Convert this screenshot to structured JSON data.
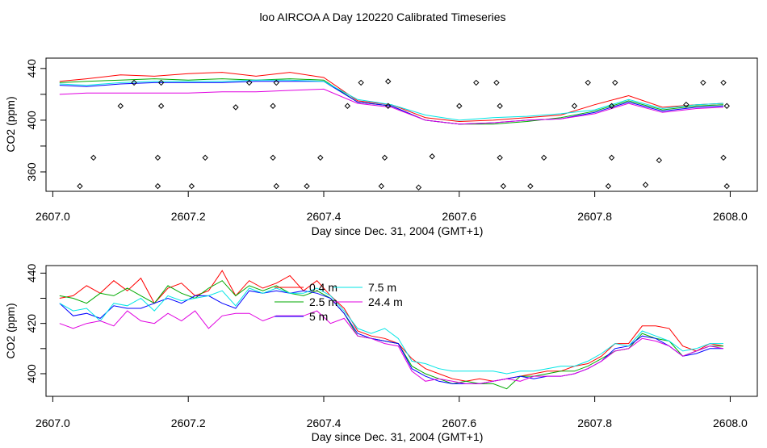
{
  "title": "loo AIRCOA A  Day 120220  Calibrated Timeseries",
  "colors": {
    "0.4 m": "#ff0000",
    "2.5 m": "#00aa00",
    "5 m": "#0000ff",
    "7.5 m": "#00e5e5",
    "24.4 m": "#e000e0",
    "points": "#000000"
  },
  "chart_data": [
    {
      "type": "line",
      "xlabel": "Day since Dec. 31, 2004 (GMT+1)",
      "ylabel": "CO2 (ppm)",
      "xlim": [
        2606.99,
        2608.04
      ],
      "ylim": [
        345,
        448
      ],
      "x_ticks": [
        "2607.0",
        "2607.2",
        "2607.4",
        "2607.6",
        "2607.8",
        "2608.0"
      ],
      "y_ticks": [
        "360",
        "400",
        "440"
      ],
      "y_tick_minor": [
        380,
        420
      ],
      "grid": false,
      "legend": "none",
      "x": [
        2607.01,
        2607.05,
        2607.1,
        2607.15,
        2607.2,
        2607.25,
        2607.3,
        2607.35,
        2607.4,
        2607.45,
        2607.5,
        2607.55,
        2607.6,
        2607.65,
        2607.7,
        2607.75,
        2607.8,
        2607.85,
        2607.9,
        2607.95,
        2607.99
      ],
      "series": [
        {
          "name": "0.4 m",
          "values": [
            430,
            432,
            435,
            434,
            436,
            437,
            434,
            437,
            433,
            415,
            412,
            402,
            399,
            400,
            402,
            404,
            412,
            419,
            410,
            412,
            413
          ]
        },
        {
          "name": "2.5 m",
          "values": [
            429,
            430,
            431,
            432,
            431,
            432,
            431,
            432,
            431,
            414,
            411,
            400,
            397,
            397,
            399,
            402,
            407,
            415,
            408,
            411,
            412
          ]
        },
        {
          "name": "5 m",
          "values": [
            427,
            426,
            428,
            429,
            429,
            429,
            430,
            430,
            430,
            414,
            411,
            400,
            397,
            398,
            400,
            401,
            406,
            414,
            407,
            410,
            411
          ]
        },
        {
          "name": "7.5 m",
          "values": [
            428,
            427,
            429,
            430,
            430,
            430,
            431,
            431,
            430,
            416,
            412,
            404,
            400,
            402,
            403,
            405,
            408,
            416,
            409,
            412,
            413
          ]
        },
        {
          "name": "24.4 m",
          "values": [
            420,
            421,
            421,
            421,
            421,
            422,
            422,
            423,
            424,
            413,
            410,
            400,
            397,
            398,
            400,
            401,
            405,
            413,
            406,
            409,
            410
          ]
        }
      ],
      "points": [
        [
          2607.04,
          349
        ],
        [
          2607.06,
          371
        ],
        [
          2607.1,
          411
        ],
        [
          2607.12,
          429
        ],
        [
          2607.155,
          349
        ],
        [
          2607.155,
          371
        ],
        [
          2607.16,
          411
        ],
        [
          2607.16,
          429
        ],
        [
          2607.205,
          349
        ],
        [
          2607.225,
          371
        ],
        [
          2607.27,
          410
        ],
        [
          2607.29,
          429
        ],
        [
          2607.325,
          371
        ],
        [
          2607.325,
          411
        ],
        [
          2607.33,
          349
        ],
        [
          2607.33,
          429
        ],
        [
          2607.375,
          349
        ],
        [
          2607.395,
          371
        ],
        [
          2607.435,
          411
        ],
        [
          2607.455,
          429
        ],
        [
          2607.485,
          349
        ],
        [
          2607.49,
          371
        ],
        [
          2607.495,
          411
        ],
        [
          2607.495,
          430
        ],
        [
          2607.54,
          348
        ],
        [
          2607.56,
          372
        ],
        [
          2607.6,
          411
        ],
        [
          2607.625,
          429
        ],
        [
          2607.655,
          429
        ],
        [
          2607.66,
          371
        ],
        [
          2607.66,
          411
        ],
        [
          2607.665,
          349
        ],
        [
          2607.705,
          349
        ],
        [
          2607.725,
          371
        ],
        [
          2607.77,
          411
        ],
        [
          2607.79,
          429
        ],
        [
          2607.82,
          349
        ],
        [
          2607.825,
          371
        ],
        [
          2607.825,
          411
        ],
        [
          2607.83,
          429
        ],
        [
          2607.875,
          350
        ],
        [
          2607.895,
          369
        ],
        [
          2607.935,
          412
        ],
        [
          2607.96,
          429
        ],
        [
          2607.99,
          429
        ],
        [
          2607.99,
          371
        ],
        [
          2607.995,
          411
        ],
        [
          2607.995,
          349
        ]
      ]
    },
    {
      "type": "line",
      "xlabel": "Day since Dec. 31, 2004 (GMT+1)",
      "ylabel": "CO2 (ppm)",
      "xlim": [
        2606.99,
        2608.04
      ],
      "ylim": [
        391,
        443
      ],
      "x_ticks": [
        "2607.0",
        "2607.2",
        "2607.4",
        "2607.6",
        "2607.8",
        "2608.0"
      ],
      "y_ticks": [
        "400",
        "420",
        "440"
      ],
      "y_tick_minor": [
        410,
        430
      ],
      "grid": false,
      "legend": "top-center",
      "x": [
        2607.01,
        2607.03,
        2607.05,
        2607.07,
        2607.09,
        2607.11,
        2607.13,
        2607.15,
        2607.17,
        2607.19,
        2607.21,
        2607.23,
        2607.25,
        2607.27,
        2607.29,
        2607.31,
        2607.33,
        2607.35,
        2607.37,
        2607.39,
        2607.41,
        2607.43,
        2607.45,
        2607.47,
        2607.49,
        2607.51,
        2607.53,
        2607.55,
        2607.57,
        2607.59,
        2607.61,
        2607.63,
        2607.65,
        2607.67,
        2607.69,
        2607.71,
        2607.73,
        2607.75,
        2607.77,
        2607.79,
        2607.81,
        2607.83,
        2607.85,
        2607.87,
        2607.89,
        2607.91,
        2607.93,
        2607.95,
        2607.97,
        2607.99
      ],
      "series": [
        {
          "name": "0.4 m",
          "values": [
            430,
            431,
            435,
            432,
            437,
            433,
            438,
            428,
            434,
            436,
            431,
            433,
            441,
            431,
            437,
            434,
            436,
            439,
            433,
            437,
            431,
            426,
            417,
            415,
            414,
            412,
            406,
            402,
            400,
            398,
            397,
            398,
            397,
            398,
            399,
            400,
            401,
            401,
            403,
            404,
            407,
            412,
            412,
            419,
            419,
            418,
            411,
            409,
            412,
            411
          ]
        },
        {
          "name": "2.5 m",
          "values": [
            431,
            430,
            428,
            432,
            431,
            434,
            431,
            428,
            435,
            432,
            430,
            434,
            437,
            431,
            435,
            433,
            435,
            432,
            431,
            433,
            430,
            424,
            415,
            414,
            413,
            412,
            403,
            400,
            398,
            396,
            397,
            396,
            396,
            394,
            399,
            399,
            400,
            401,
            401,
            403,
            406,
            409,
            410,
            416,
            414,
            413,
            407,
            409,
            411,
            411
          ]
        },
        {
          "name": "5 m",
          "values": [
            428,
            423,
            424,
            422,
            427,
            426,
            426,
            428,
            430,
            428,
            431,
            431,
            428,
            426,
            433,
            432,
            433,
            432,
            433,
            432,
            430,
            424,
            416,
            414,
            413,
            412,
            402,
            399,
            397,
            396,
            396,
            396,
            397,
            398,
            399,
            398,
            399,
            399,
            400,
            402,
            405,
            410,
            411,
            415,
            414,
            411,
            407,
            408,
            410,
            410
          ]
        },
        {
          "name": "7.5 m",
          "values": [
            428,
            425,
            426,
            421,
            428,
            427,
            430,
            425,
            431,
            429,
            430,
            431,
            433,
            427,
            434,
            432,
            434,
            432,
            432,
            434,
            431,
            425,
            418,
            416,
            418,
            414,
            405,
            404,
            402,
            401,
            401,
            401,
            401,
            400,
            401,
            401,
            402,
            403,
            403,
            405,
            408,
            412,
            411,
            417,
            415,
            413,
            409,
            410,
            412,
            412
          ]
        },
        {
          "name": "24.4 m",
          "values": [
            420,
            418,
            420,
            421,
            419,
            425,
            421,
            420,
            424,
            421,
            425,
            418,
            423,
            424,
            424,
            421,
            423,
            423,
            423,
            425,
            420,
            422,
            415,
            414,
            412,
            411,
            401,
            397,
            398,
            397,
            396,
            396,
            397,
            398,
            397,
            399,
            399,
            399,
            400,
            402,
            405,
            409,
            410,
            414,
            413,
            411,
            407,
            409,
            411,
            410
          ]
        }
      ]
    }
  ]
}
